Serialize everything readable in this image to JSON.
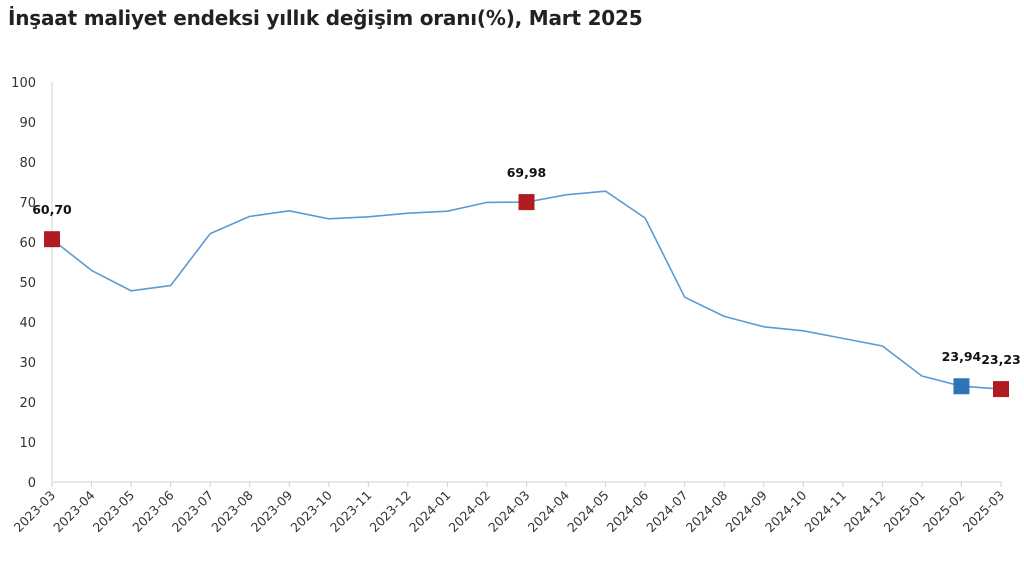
{
  "chart_data": {
    "type": "line",
    "title": "İnşaat maliyet endeksi yıllık değişim oranı(%), Mart 2025",
    "xlabel": "",
    "ylabel": "",
    "ylim": [
      0,
      100
    ],
    "yticks": [
      0,
      10,
      20,
      30,
      40,
      50,
      60,
      70,
      80,
      90,
      100
    ],
    "grid": false,
    "legend": "none",
    "line_color": "#5b9bd5",
    "categories": [
      "2023-03",
      "2023-04",
      "2023-05",
      "2023-06",
      "2023-07",
      "2023-08",
      "2023-09",
      "2023-10",
      "2023-11",
      "2023-12",
      "2024-01",
      "2024-02",
      "2024-03",
      "2024-04",
      "2024-05",
      "2024-06",
      "2024-07",
      "2024-08",
      "2024-09",
      "2024-10",
      "2024-11",
      "2024-12",
      "2025-01",
      "2025-02",
      "2025-03"
    ],
    "series": [
      {
        "values": [
          60.7,
          52.9,
          47.8,
          49.1,
          62.1,
          66.4,
          67.8,
          65.8,
          66.3,
          67.2,
          67.7,
          69.9,
          69.98,
          71.8,
          72.7,
          66.0,
          46.2,
          41.4,
          38.8,
          37.8,
          35.9,
          34.0,
          26.5,
          23.94,
          23.23
        ]
      }
    ],
    "highlights": [
      {
        "category": "2023-03",
        "value": 60.7,
        "label": "60,70",
        "color": "#b01c22"
      },
      {
        "category": "2024-03",
        "value": 69.98,
        "label": "69,98",
        "color": "#b01c22"
      },
      {
        "category": "2025-02",
        "value": 23.94,
        "label": "23,94",
        "color": "#2e75b6"
      },
      {
        "category": "2025-03",
        "value": 23.23,
        "label": "23,23",
        "color": "#b01c22"
      }
    ]
  }
}
